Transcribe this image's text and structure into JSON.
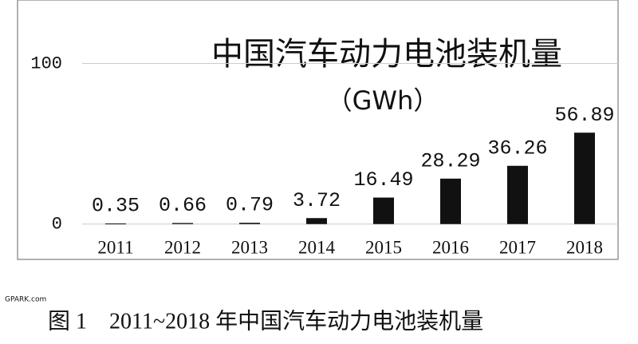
{
  "chart_data": {
    "type": "bar",
    "title": "中国汽车动力电池装机量",
    "subtitle": "（GWh）",
    "categories": [
      "2011",
      "2012",
      "2013",
      "2014",
      "2015",
      "2016",
      "2017",
      "2018"
    ],
    "values": [
      0.35,
      0.66,
      0.79,
      3.72,
      16.49,
      28.29,
      36.26,
      56.89
    ],
    "color": "#111111",
    "ylim": [
      -22,
      137
    ],
    "yticks": [
      0,
      100
    ],
    "grid": true,
    "caption": "图 1　2011~2018 年中国汽车动力电池装机量",
    "watermark": "GPARK.com"
  }
}
